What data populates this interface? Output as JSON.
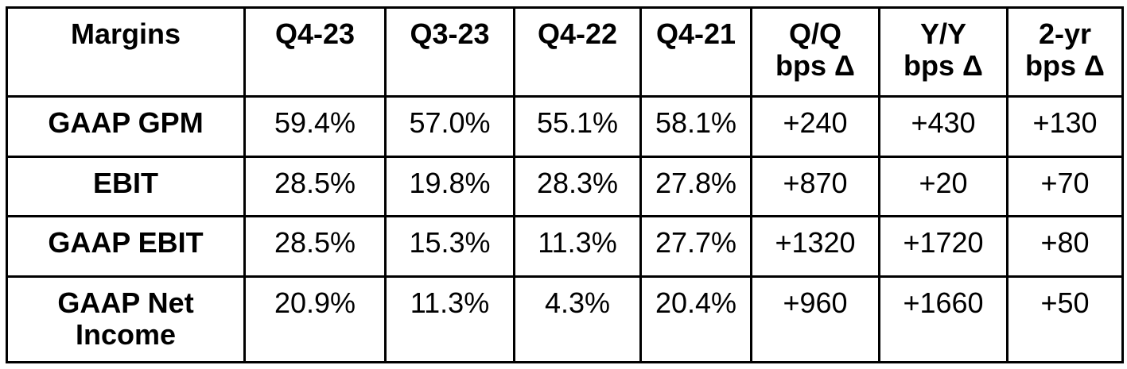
{
  "colors": {
    "background": "#ffffff",
    "text": "#000000",
    "border": "#000000"
  },
  "chart_data": {
    "type": "table",
    "title": "Margins",
    "columns": [
      "Margins",
      "Q4-23",
      "Q3-23",
      "Q4-22",
      "Q4-21",
      "Q/Q\nbps Δ",
      "Y/Y\nbps Δ",
      "2-yr\nbps Δ"
    ],
    "rows": [
      {
        "label": "GAAP GPM",
        "values": [
          "59.4%",
          "57.0%",
          "55.1%",
          "58.1%",
          "+240",
          "+430",
          "+130"
        ]
      },
      {
        "label": "EBIT",
        "values": [
          "28.5%",
          "19.8%",
          "28.3%",
          "27.8%",
          "+870",
          "+20",
          "+70"
        ]
      },
      {
        "label": "GAAP EBIT",
        "values": [
          "28.5%",
          "15.3%",
          "11.3%",
          "27.7%",
          "+1320",
          "+1720",
          "+80"
        ]
      },
      {
        "label": "GAAP Net Income",
        "values": [
          "20.9%",
          "11.3%",
          "4.3%",
          "20.4%",
          "+960",
          "+1660",
          "+50"
        ]
      }
    ],
    "layout": {
      "header_bold": true,
      "row_labels_bold": true,
      "grid": true,
      "units": {
        "quarters": "percent margin",
        "deltas": "basis points"
      }
    }
  }
}
